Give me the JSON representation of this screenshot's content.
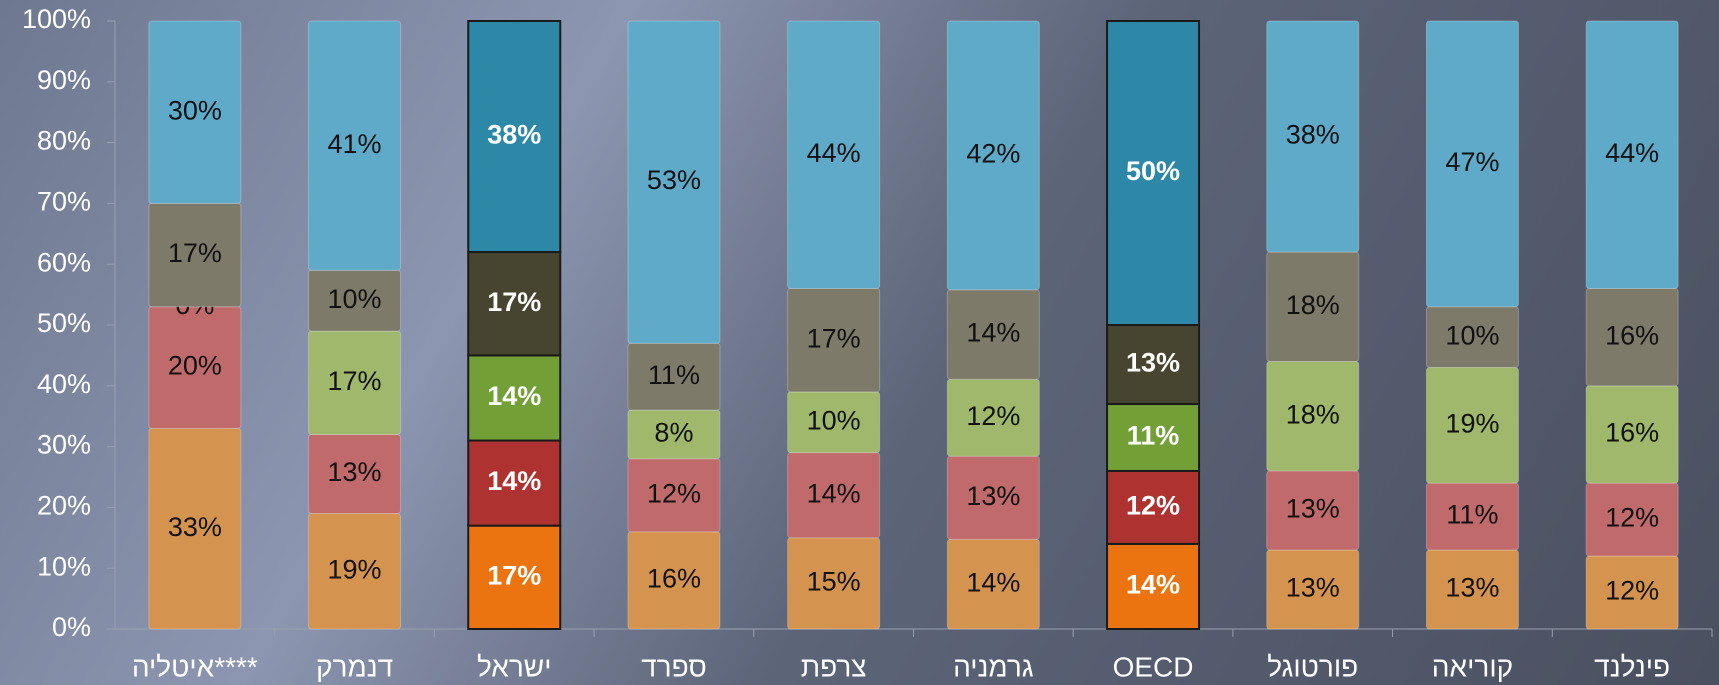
{
  "chart_data": {
    "type": "stacked100",
    "categories": [
      "איטליה****",
      "דנמרק",
      "ישראל",
      "ספרד",
      "צרפת",
      "גרמניה",
      "OECD",
      "פורטוגל",
      "קוריאה",
      "פינלנד"
    ],
    "highlight": [
      2,
      6
    ],
    "series": [
      {
        "color": "#d4934e",
        "highlight_color": "#ec7410",
        "values": [
          33,
          19,
          17,
          16,
          15,
          14,
          14,
          13,
          13,
          12
        ],
        "value_labels": [
          "33%",
          "19%",
          "17%",
          "16%",
          "15%",
          "14%",
          "14%",
          "13%",
          "13%",
          "12%"
        ]
      },
      {
        "color": "#c06a6c",
        "highlight_color": "#ae3230",
        "values": [
          20,
          13,
          14,
          12,
          14,
          13,
          12,
          13,
          11,
          12
        ],
        "value_labels": [
          "20%",
          "13%",
          "14%",
          "12%",
          "14%",
          "13%",
          "12%",
          "13%",
          "11%",
          "12%"
        ]
      },
      {
        "color": "#a0b86c",
        "highlight_color": "#72a036",
        "values": [
          0,
          17,
          14,
          8,
          10,
          12,
          11,
          18,
          19,
          16
        ],
        "value_labels": [
          "0%",
          "17%",
          "14%",
          "8%",
          "10%",
          "12%",
          "11%",
          "18%",
          "19%",
          "16%"
        ]
      },
      {
        "color": "#7e7a6a",
        "highlight_color": "#47452f",
        "values": [
          17,
          10,
          17,
          11,
          17,
          14,
          13,
          18,
          10,
          16
        ],
        "value_labels": [
          "17%",
          "10%",
          "17%",
          "11%",
          "17%",
          "14%",
          "13%",
          "18%",
          "10%",
          "16%"
        ]
      },
      {
        "color": "#5eaac8",
        "highlight_color": "#2c88a6",
        "values": [
          30,
          41,
          38,
          53,
          44,
          42,
          50,
          38,
          47,
          44
        ],
        "value_labels": [
          "30%",
          "41%",
          "38%",
          "53%",
          "44%",
          "42%",
          "50%",
          "38%",
          "47%",
          "44%"
        ]
      }
    ],
    "ylim": [
      0,
      100
    ],
    "yticks": [
      {
        "value": 0,
        "label": "0%"
      },
      {
        "value": 10,
        "label": "10%"
      },
      {
        "value": 20,
        "label": "20%"
      },
      {
        "value": 30,
        "label": "30%"
      },
      {
        "value": 40,
        "label": "40%"
      },
      {
        "value": 50,
        "label": "50%"
      },
      {
        "value": 60,
        "label": "60%"
      },
      {
        "value": 70,
        "label": "70%"
      },
      {
        "value": 80,
        "label": "80%"
      },
      {
        "value": 90,
        "label": "90%"
      },
      {
        "value": 100,
        "label": "100%"
      }
    ]
  }
}
